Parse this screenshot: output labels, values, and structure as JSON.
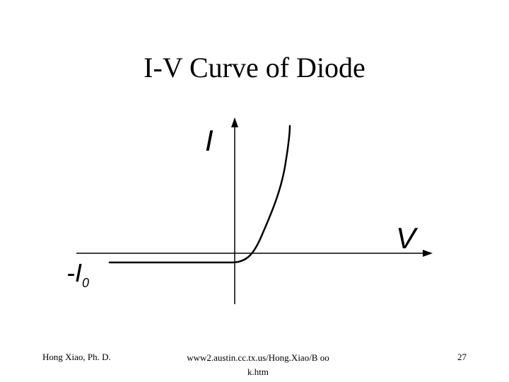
{
  "slide": {
    "title": "I-V Curve of Diode",
    "footer_left": "Hong Xiao, Ph. D.",
    "footer_center": "www2.austin.cc.tx.us/Hong.Xiao/Book.htm",
    "footer_center_line1": "www2.austin.cc.tx.us/Hong.Xiao/B oo",
    "footer_center_line2": "k.htm",
    "page_number": "27"
  },
  "diagram": {
    "y_axis_label": "I",
    "x_axis_label": "V",
    "neg_current_label_prefix": "-I",
    "neg_current_label_subscript": "0"
  },
  "colors": {
    "background": "#ffffff",
    "ink": "#000000"
  }
}
